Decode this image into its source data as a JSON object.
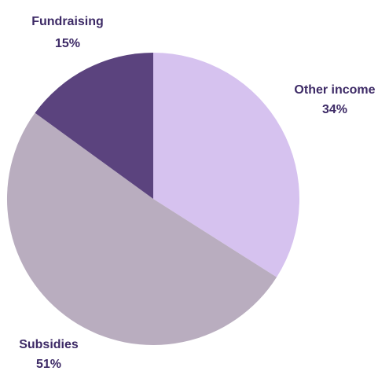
{
  "chart_data": {
    "type": "pie",
    "title": "",
    "slices": [
      {
        "label": "Other income",
        "value": 34,
        "value_label": "34%",
        "color": "#d6c2ef"
      },
      {
        "label": "Subsidies",
        "value": 51,
        "value_label": "51%",
        "color": "#b9adbf"
      },
      {
        "label": "Fundraising",
        "value": 15,
        "value_label": "15%",
        "color": "#5b437e"
      }
    ],
    "start_angle": "12 o'clock",
    "direction": "clockwise",
    "legend": "none",
    "label_color": "#3d2a66"
  }
}
